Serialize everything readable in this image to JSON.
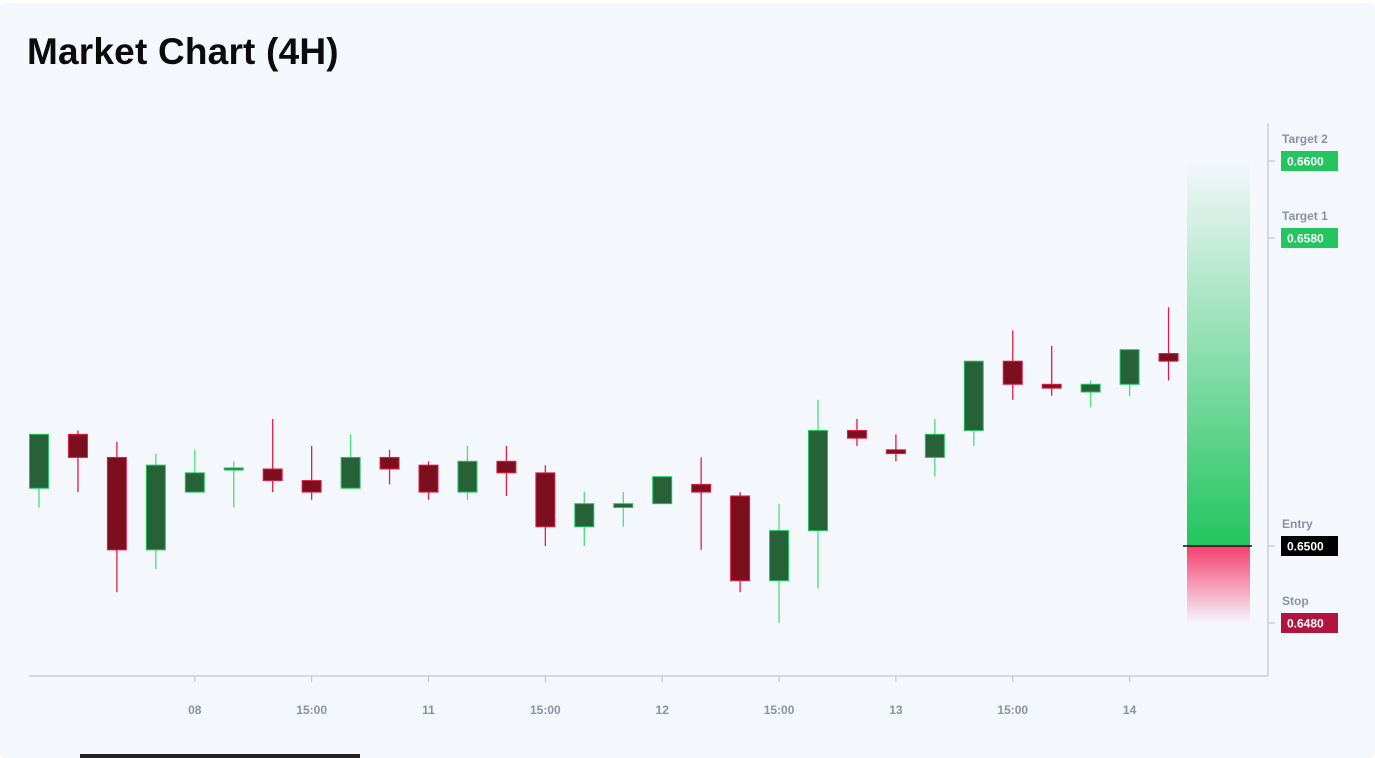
{
  "title": "Market Chart (4H)",
  "chart_data": {
    "type": "candlestick",
    "title": "Market Chart (4H)",
    "x_ticks": [
      "08",
      "15:00",
      "11",
      "15:00",
      "12",
      "15:00",
      "13",
      "15:00",
      "14"
    ],
    "ylim": [
      0.6455,
      0.6605
    ],
    "colors": {
      "up_body": "#266138",
      "up_border": "#22c55e",
      "up_wick": "#4ade80",
      "down_body": "#7c0f1d",
      "down_border": "#e11d48",
      "down_wick": "#e11d48"
    },
    "candles": [
      {
        "o": 0.6515,
        "h": 0.6529,
        "l": 0.651,
        "c": 0.6529
      },
      {
        "o": 0.6529,
        "h": 0.653,
        "l": 0.6514,
        "c": 0.6523
      },
      {
        "o": 0.6523,
        "h": 0.6527,
        "l": 0.6488,
        "c": 0.6499
      },
      {
        "o": 0.6499,
        "h": 0.6524,
        "l": 0.6494,
        "c": 0.6521
      },
      {
        "o": 0.6514,
        "h": 0.6525,
        "l": 0.6514,
        "c": 0.6519
      },
      {
        "o": 0.652,
        "h": 0.6522,
        "l": 0.651,
        "c": 0.652
      },
      {
        "o": 0.652,
        "h": 0.6533,
        "l": 0.6514,
        "c": 0.6517
      },
      {
        "o": 0.6517,
        "h": 0.6526,
        "l": 0.6512,
        "c": 0.6514
      },
      {
        "o": 0.6515,
        "h": 0.6529,
        "l": 0.6515,
        "c": 0.6523
      },
      {
        "o": 0.6523,
        "h": 0.6525,
        "l": 0.6516,
        "c": 0.652
      },
      {
        "o": 0.6521,
        "h": 0.6522,
        "l": 0.6512,
        "c": 0.6514
      },
      {
        "o": 0.6514,
        "h": 0.6526,
        "l": 0.6512,
        "c": 0.6522
      },
      {
        "o": 0.6522,
        "h": 0.6526,
        "l": 0.6513,
        "c": 0.6519
      },
      {
        "o": 0.6519,
        "h": 0.6521,
        "l": 0.65,
        "c": 0.6505
      },
      {
        "o": 0.6505,
        "h": 0.6514,
        "l": 0.65,
        "c": 0.6511
      },
      {
        "o": 0.651,
        "h": 0.6514,
        "l": 0.6505,
        "c": 0.6511
      },
      {
        "o": 0.6511,
        "h": 0.6518,
        "l": 0.6511,
        "c": 0.6518
      },
      {
        "o": 0.6516,
        "h": 0.6523,
        "l": 0.6499,
        "c": 0.6514
      },
      {
        "o": 0.6513,
        "h": 0.6514,
        "l": 0.6488,
        "c": 0.6491
      },
      {
        "o": 0.6491,
        "h": 0.6511,
        "l": 0.648,
        "c": 0.6504
      },
      {
        "o": 0.6504,
        "h": 0.6538,
        "l": 0.6489,
        "c": 0.653
      },
      {
        "o": 0.653,
        "h": 0.6533,
        "l": 0.6526,
        "c": 0.6528
      },
      {
        "o": 0.6525,
        "h": 0.6529,
        "l": 0.6522,
        "c": 0.6524
      },
      {
        "o": 0.6523,
        "h": 0.6533,
        "l": 0.6518,
        "c": 0.6529
      },
      {
        "o": 0.653,
        "h": 0.6548,
        "l": 0.6526,
        "c": 0.6548
      },
      {
        "o": 0.6548,
        "h": 0.6556,
        "l": 0.6538,
        "c": 0.6542
      },
      {
        "o": 0.6542,
        "h": 0.6552,
        "l": 0.6539,
        "c": 0.6541
      },
      {
        "o": 0.654,
        "h": 0.6543,
        "l": 0.6536,
        "c": 0.6542
      },
      {
        "o": 0.6542,
        "h": 0.6551,
        "l": 0.6539,
        "c": 0.6551
      },
      {
        "o": 0.655,
        "h": 0.6562,
        "l": 0.6543,
        "c": 0.6548
      }
    ],
    "levels": [
      {
        "name": "Target 2",
        "value": "0.6600",
        "y": 0.66,
        "color": "#22c55e",
        "text_color": "#ffffff"
      },
      {
        "name": "Target 1",
        "value": "0.6580",
        "y": 0.658,
        "color": "#22c55e",
        "text_color": "#ffffff"
      },
      {
        "name": "Entry",
        "value": "0.6500",
        "y": 0.65,
        "color": "#000000",
        "text_color": "#ffffff"
      },
      {
        "name": "Stop",
        "value": "0.6480",
        "y": 0.648,
        "color": "#b3143f",
        "text_color": "#ffffff"
      }
    ],
    "zone": {
      "entry": 0.65,
      "target": 0.66,
      "stop": 0.648,
      "profit_color": "#22c55e",
      "loss_color": "#f43f6e"
    },
    "grid": false
  }
}
